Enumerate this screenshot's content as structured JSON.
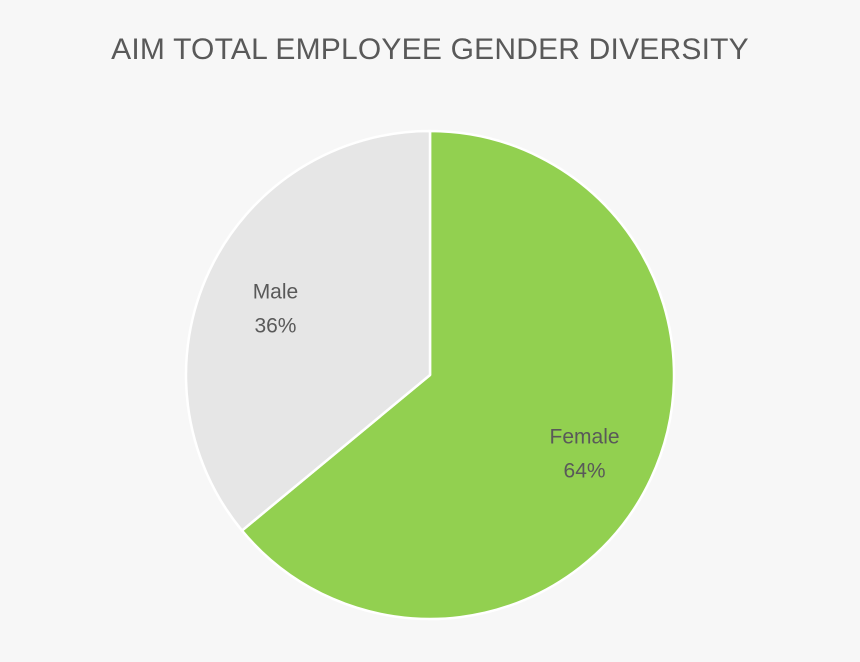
{
  "chart_data": {
    "type": "pie",
    "title": "AIM TOTAL EMPLOYEE GENDER DIVERSITY",
    "slices": [
      {
        "label": "Female",
        "value": 64,
        "value_label": "64%",
        "color": "#92d050"
      },
      {
        "label": "Male",
        "value": 36,
        "value_label": "36%",
        "color": "#e6e6e6"
      }
    ],
    "start_angle": "12 o'clock",
    "direction": "clockwise",
    "slice_border_color": "#ffffff",
    "background_color": "#f7f7f7",
    "legend": "none"
  }
}
